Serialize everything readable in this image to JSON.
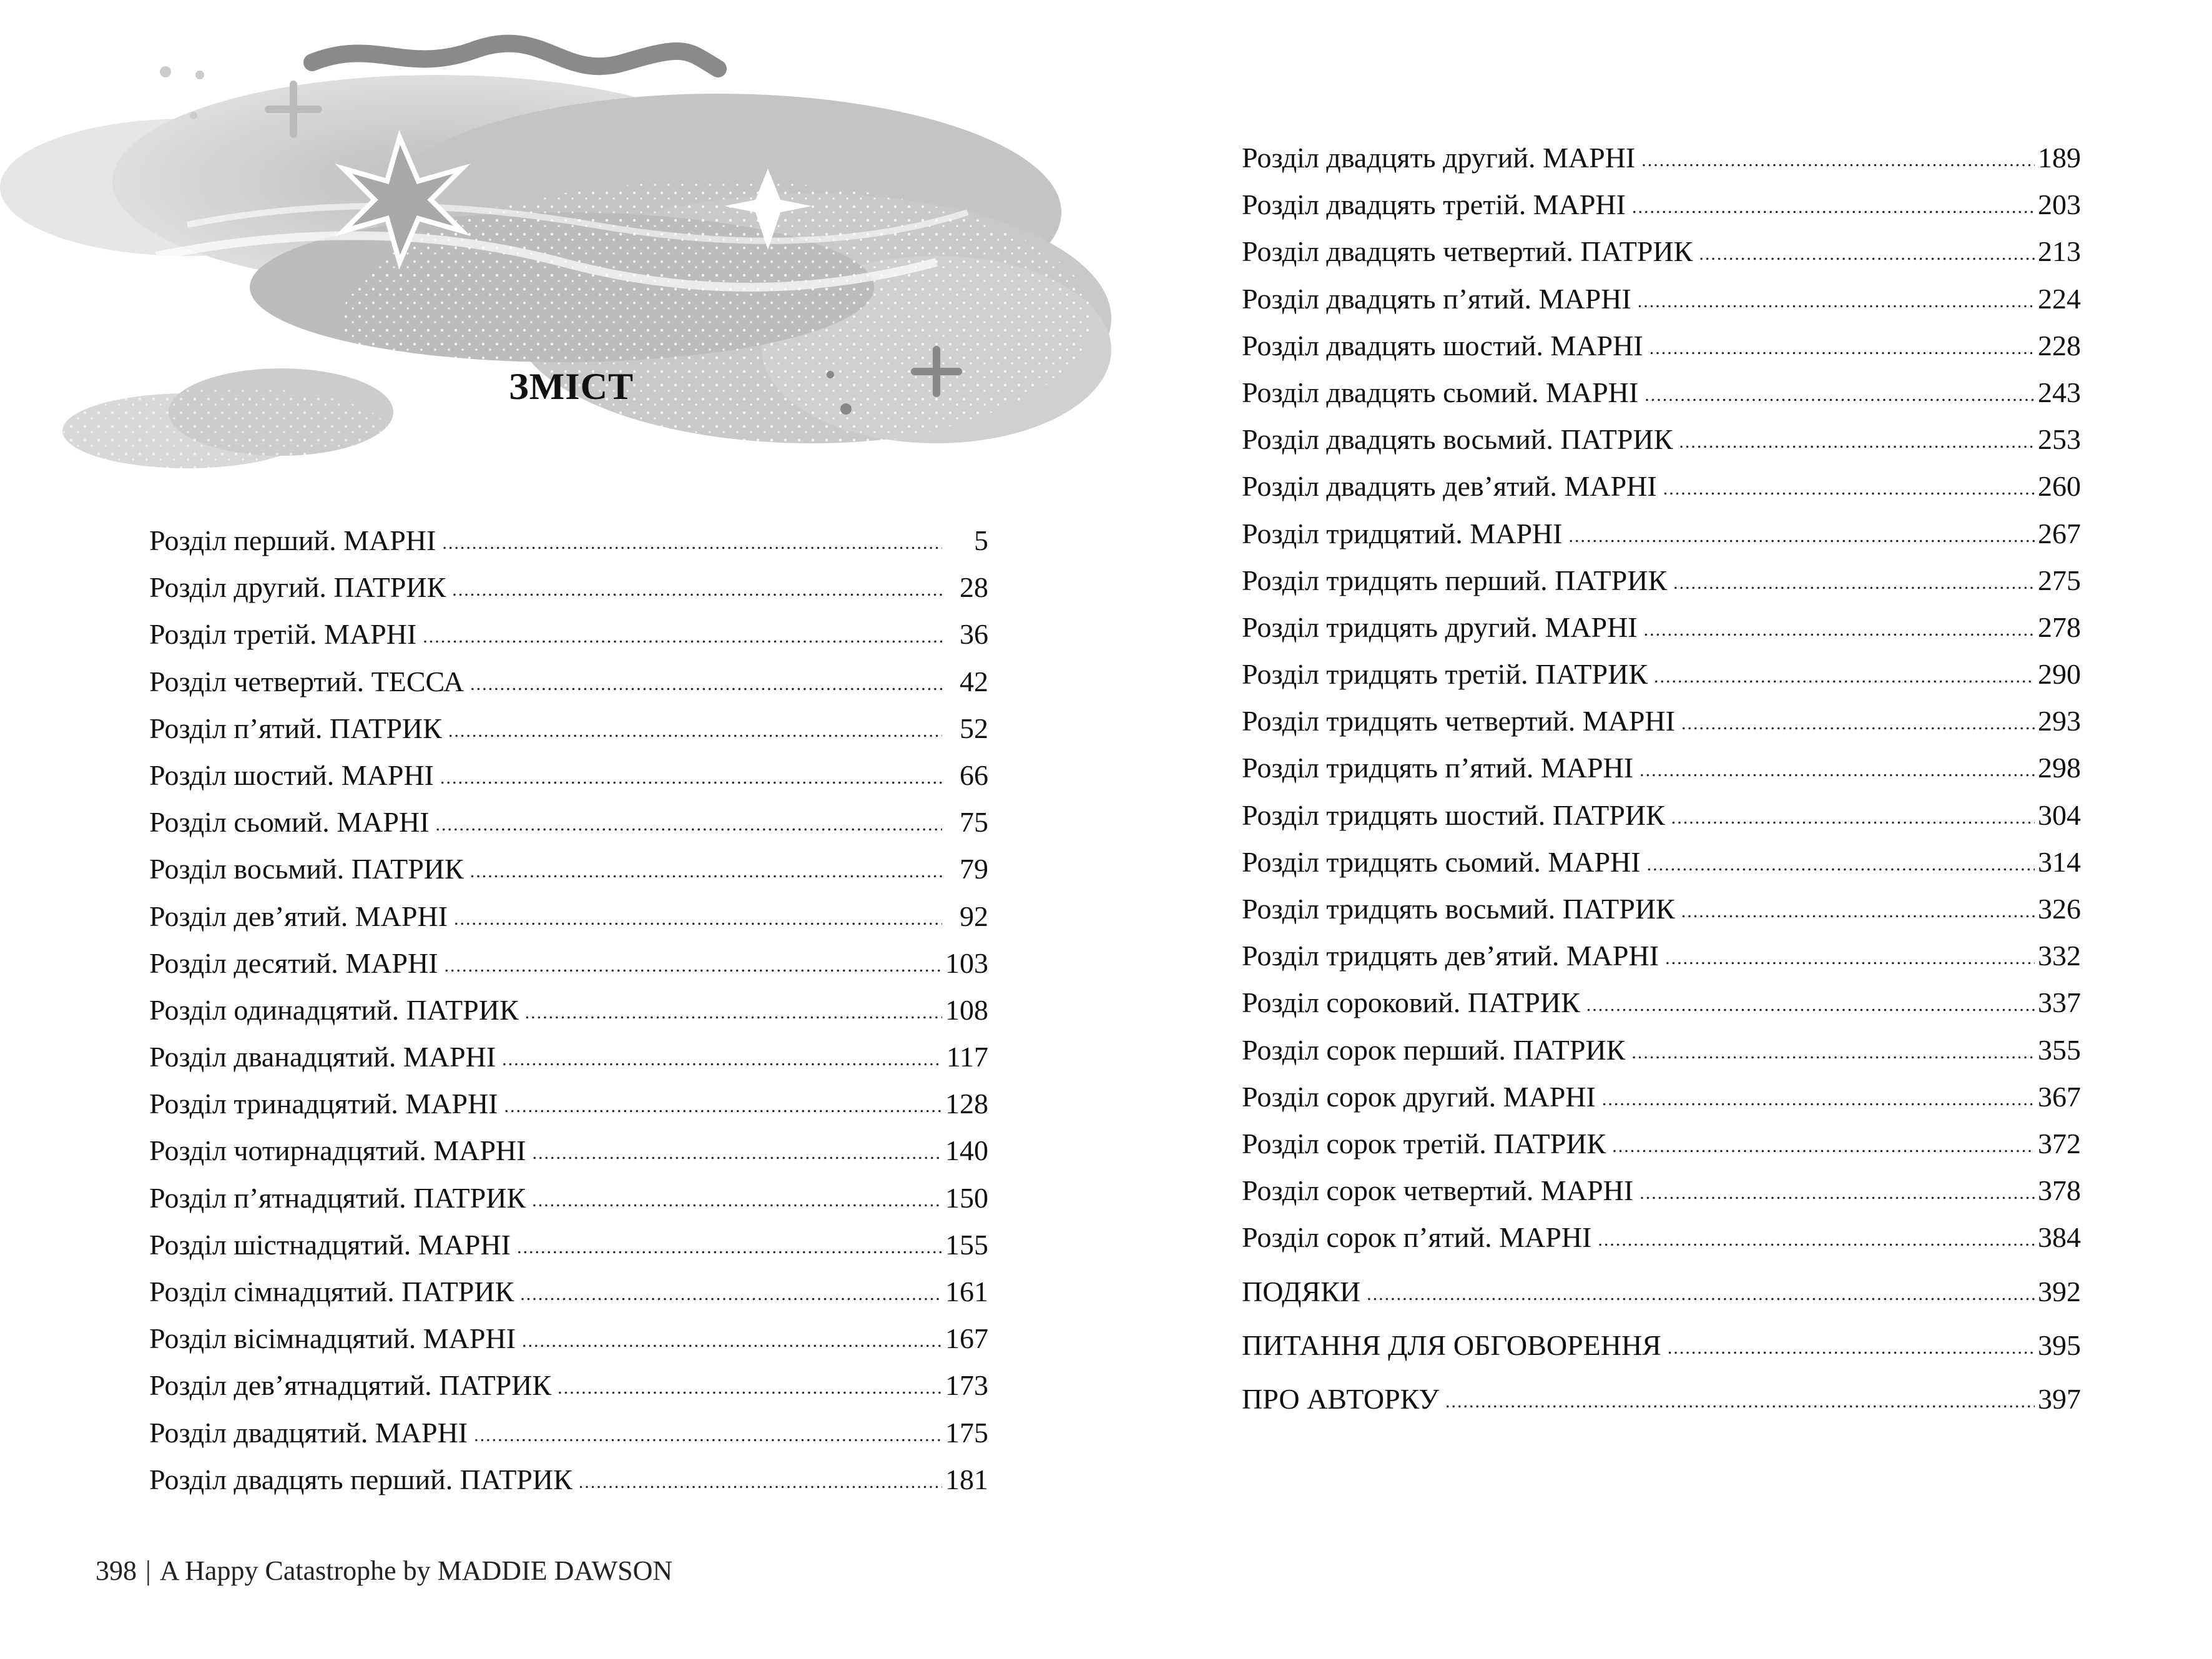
{
  "title": "ЗМІСТ",
  "toc_left": [
    {
      "label": "Розділ перший. МАРНІ",
      "page": "5"
    },
    {
      "label": "Розділ другий. ПАТРИК",
      "page": "28"
    },
    {
      "label": "Розділ третій. МАРНІ",
      "page": "36"
    },
    {
      "label": "Розділ четвертий. ТЕССА",
      "page": "42"
    },
    {
      "label": "Розділ п’ятий. ПАТРИК",
      "page": "52"
    },
    {
      "label": "Розділ шостий. МАРНІ",
      "page": "66"
    },
    {
      "label": "Розділ сьомий. МАРНІ",
      "page": "75"
    },
    {
      "label": "Розділ восьмий. ПАТРИК",
      "page": "79"
    },
    {
      "label": "Розділ дев’ятий. МАРНІ",
      "page": "92"
    },
    {
      "label": "Розділ десятий. МАРНІ",
      "page": "103"
    },
    {
      "label": "Розділ одинадцятий. ПАТРИК",
      "page": "108"
    },
    {
      "label": "Розділ дванадцятий. МАРНІ",
      "page": "117"
    },
    {
      "label": "Розділ тринадцятий. МАРНІ",
      "page": "128"
    },
    {
      "label": "Розділ чотирнадцятий. МАРНІ",
      "page": "140"
    },
    {
      "label": "Розділ п’ятнадцятий. ПАТРИК",
      "page": "150"
    },
    {
      "label": "Розділ шістнадцятий. МАРНІ",
      "page": "155"
    },
    {
      "label": "Розділ сімнадцятий. ПАТРИК",
      "page": "161"
    },
    {
      "label": "Розділ вісімнадцятий. МАРНІ",
      "page": "167"
    },
    {
      "label": "Розділ дев’ятнадцятий. ПАТРИК",
      "page": "173"
    },
    {
      "label": "Розділ двадцятий. МАРНІ",
      "page": "175"
    },
    {
      "label": "Розділ двадцять перший. ПАТРИК",
      "page": "181"
    }
  ],
  "toc_right": [
    {
      "label": "Розділ двадцять другий. МАРНІ",
      "page": "189"
    },
    {
      "label": "Розділ двадцять третій. МАРНІ",
      "page": "203"
    },
    {
      "label": "Розділ двадцять четвертий. ПАТРИК",
      "page": "213"
    },
    {
      "label": "Розділ двадцять п’ятий. МАРНІ",
      "page": "224"
    },
    {
      "label": "Розділ двадцять шостий. МАРНІ",
      "page": "228"
    },
    {
      "label": "Розділ двадцять сьомий. МАРНІ",
      "page": "243"
    },
    {
      "label": "Розділ двадцять восьмий. ПАТРИК",
      "page": "253"
    },
    {
      "label": "Розділ двадцять дев’ятий. МАРНІ",
      "page": "260"
    },
    {
      "label": "Розділ тридцятий. МАРНІ",
      "page": "267"
    },
    {
      "label": "Розділ тридцять перший. ПАТРИК",
      "page": "275"
    },
    {
      "label": "Розділ тридцять другий. МАРНІ",
      "page": "278"
    },
    {
      "label": "Розділ тридцять третій. ПАТРИК",
      "page": "290"
    },
    {
      "label": "Розділ тридцять четвертий. МАРНІ",
      "page": "293"
    },
    {
      "label": "Розділ тридцять п’ятий. МАРНІ",
      "page": "298"
    },
    {
      "label": "Розділ тридцять шостий. ПАТРИК",
      "page": "304"
    },
    {
      "label": "Розділ тридцять сьомий. МАРНІ",
      "page": "314"
    },
    {
      "label": "Розділ тридцять восьмий. ПАТРИК",
      "page": "326"
    },
    {
      "label": "Розділ тридцять дев’ятий. МАРНІ",
      "page": "332"
    },
    {
      "label": "Розділ сороковий. ПАТРИК",
      "page": "337"
    },
    {
      "label": "Розділ сорок перший. ПАТРИК",
      "page": "355"
    },
    {
      "label": "Розділ сорок другий. МАРНІ",
      "page": "367"
    },
    {
      "label": "Розділ сорок третій. ПАТРИК",
      "page": "372"
    },
    {
      "label": "Розділ сорок четвертий. МАРНІ",
      "page": "378"
    },
    {
      "label": "Розділ сорок п’ятий. МАРНІ",
      "page": "384"
    }
  ],
  "toc_extra": [
    {
      "label": "ПОДЯКИ",
      "page": "392"
    },
    {
      "label": "ПИТАННЯ ДЛЯ ОБГОВОРЕННЯ",
      "page": "395"
    },
    {
      "label": "ПРО АВТОРКУ",
      "page": "397"
    }
  ],
  "footer": {
    "page_number": "398",
    "separator": "|",
    "book_title": "A Happy Catastrophe",
    "by": "by",
    "author": "MADDIE DAWSON"
  },
  "illustration": {
    "name": "clouds-and-stars",
    "colors": [
      "#bdbdbd",
      "#d6d6d6",
      "#9a9a9a"
    ]
  }
}
